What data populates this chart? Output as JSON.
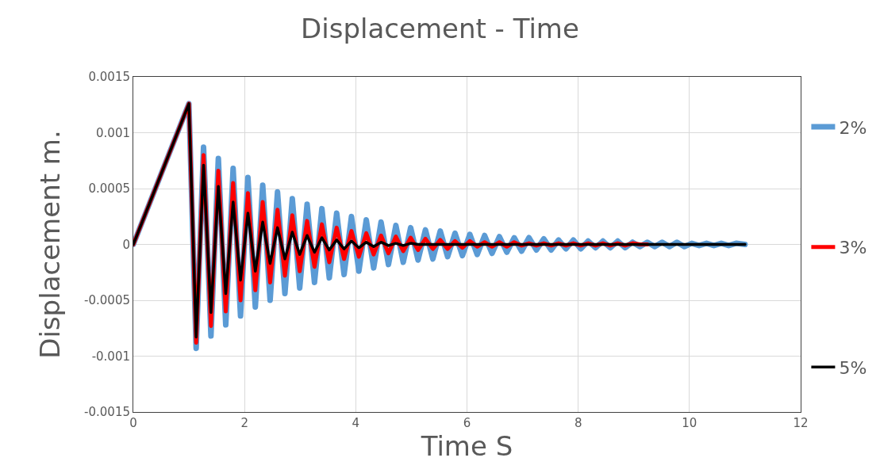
{
  "chart_data": {
    "type": "line",
    "title": "Displacement - Time",
    "xlabel": "Time S",
    "ylabel": "Displacement m.",
    "x": [
      0,
      1.0,
      1.13,
      1.263,
      1.396,
      1.529,
      1.662,
      1.795,
      1.928,
      2.061,
      2.194,
      2.327,
      2.46,
      2.593,
      2.726,
      2.859,
      2.992,
      3.125,
      3.258,
      3.391,
      3.524,
      3.657,
      3.79,
      3.923,
      4.056,
      4.189,
      4.322,
      4.455,
      4.588,
      4.721,
      4.854,
      4.987,
      5.12,
      5.253,
      5.386,
      5.519,
      5.652,
      5.785,
      5.918,
      6.051,
      6.184,
      6.317,
      6.45,
      6.583,
      6.716,
      6.849,
      6.982,
      7.115,
      7.248,
      7.381,
      7.514,
      7.647,
      7.78,
      7.913,
      8.046,
      8.179,
      8.312,
      8.445,
      8.578,
      8.711,
      8.844,
      8.977,
      9.11,
      9.243,
      9.376,
      9.509,
      9.642,
      9.775,
      9.908,
      10.041,
      10.174,
      10.307,
      10.44,
      10.573,
      10.706,
      10.839,
      11.0
    ],
    "series": [
      {
        "name": "2%",
        "color": "#5b9bd5",
        "values": [
          0,
          0.00126,
          -0.00093,
          0.00087,
          -0.00082,
          0.00077,
          -0.00072,
          0.00068,
          -0.00064,
          0.0006,
          -0.00056,
          0.00053,
          -0.0005,
          0.00047,
          -0.00044,
          0.00041,
          -0.00039,
          0.00036,
          -0.00034,
          0.00032,
          -0.0003,
          0.00028,
          -0.00027,
          0.00025,
          -0.00024,
          0.00022,
          -0.00021,
          0.0002,
          -0.00018,
          0.00017,
          -0.00016,
          0.00015,
          -0.00014,
          0.00013,
          -0.00013,
          0.00012,
          -0.00011,
          0.0001,
          -0.0001,
          9e-05,
          -9e-05,
          8e-05,
          -8e-05,
          7e-05,
          -7e-05,
          6e-05,
          -6e-05,
          6e-05,
          -5e-05,
          5e-05,
          -5e-05,
          4e-05,
          -4e-05,
          4e-05,
          -4e-05,
          3e-05,
          -3e-05,
          3e-05,
          -3e-05,
          3e-05,
          -3e-05,
          2e-05,
          -2e-05,
          2e-05,
          -2e-05,
          2e-05,
          -2e-05,
          2e-05,
          -2e-05,
          1e-05,
          -1e-05,
          1e-05,
          -1e-05,
          1e-05,
          -1e-05,
          1e-05,
          0
        ]
      },
      {
        "name": "3%",
        "color": "#ff0000",
        "values": [
          0,
          0.00126,
          -0.00088,
          0.0008,
          -0.00073,
          0.00066,
          -0.0006,
          0.00055,
          -0.0005,
          0.00046,
          -0.00041,
          0.00038,
          -0.00034,
          0.00031,
          -0.00028,
          0.00026,
          -0.00024,
          0.00021,
          -0.0002,
          0.00018,
          -0.00016,
          0.00015,
          -0.00013,
          0.00012,
          -0.00011,
          0.0001,
          -9e-05,
          8e-05,
          -8e-05,
          7e-05,
          -6e-05,
          6e-05,
          -5e-05,
          5e-05,
          -4e-05,
          4e-05,
          -4e-05,
          3e-05,
          -3e-05,
          3e-05,
          -2e-05,
          2e-05,
          -2e-05,
          2e-05,
          -2e-05,
          2e-05,
          -1e-05,
          1e-05,
          -1e-05,
          1e-05,
          -1e-05,
          1e-05,
          -1e-05,
          1e-05,
          -1e-05,
          1e-05,
          -1e-05,
          1e-05,
          -1e-05,
          1e-05,
          -1e-05,
          1e-05,
          0,
          0,
          null,
          null,
          null,
          null,
          null,
          null,
          null,
          null,
          null,
          null,
          null,
          null,
          null
        ]
      },
      {
        "name": "5%",
        "color": "#000000",
        "values": [
          0,
          0.00126,
          -0.00083,
          0.00071,
          -0.00061,
          0.00052,
          -0.00044,
          0.00038,
          -0.00032,
          0.00028,
          -0.00024,
          0.0002,
          -0.00017,
          0.00015,
          -0.00013,
          0.00011,
          -9e-05,
          8e-05,
          -7e-05,
          6e-05,
          -5e-05,
          4e-05,
          -4e-05,
          3e-05,
          -3e-05,
          2e-05,
          -2e-05,
          2e-05,
          -1e-05,
          1e-05,
          -1e-05,
          1e-05,
          0,
          0,
          0,
          0,
          0,
          0,
          0,
          0,
          0,
          0,
          0,
          0,
          0,
          0,
          0,
          0,
          0,
          0,
          0,
          0,
          0,
          0,
          0,
          0,
          0,
          0,
          0,
          0,
          0,
          0,
          0,
          0,
          0,
          0,
          0,
          0,
          0,
          0,
          0,
          0,
          0,
          0,
          0,
          0,
          0
        ]
      }
    ],
    "xlim": [
      0,
      12
    ],
    "xticks": [
      0,
      2,
      4,
      6,
      8,
      10,
      12
    ],
    "ylim": [
      -0.0015,
      0.0015
    ],
    "yticks": [
      -0.0015,
      -0.001,
      -0.0005,
      0,
      0.0005,
      0.001,
      0.0015
    ],
    "grid": true,
    "legend": "right",
    "line_style": "solid",
    "marker": "none"
  }
}
